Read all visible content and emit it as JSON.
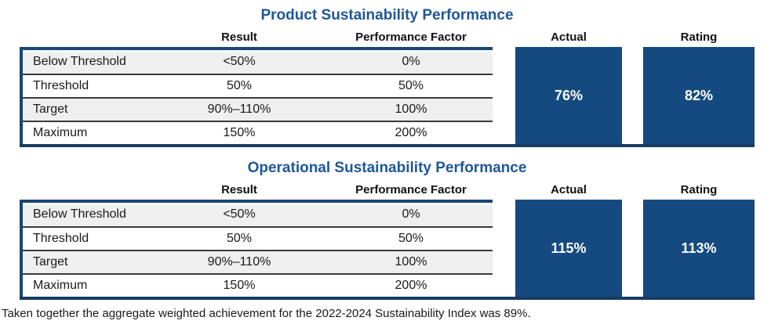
{
  "colors": {
    "title_blue": "#1e5799",
    "box_navy": "#154a80",
    "border_navy": "#173c62",
    "row_alt_gray": "#efefef",
    "row_line_dark": "#3a3a3a",
    "box_value_text": "#ffffff"
  },
  "sections": [
    {
      "title": "Product Sustainability Performance",
      "columns": {
        "result": "Result",
        "performance_factor": "Performance Factor",
        "actual": "Actual",
        "rating": "Rating"
      },
      "rows": [
        {
          "label": "Below Threshold",
          "result": "<50%",
          "performance_factor": "0%"
        },
        {
          "label": "Threshold",
          "result": "50%",
          "performance_factor": "50%"
        },
        {
          "label": "Target",
          "result": "90%–110%",
          "performance_factor": "100%"
        },
        {
          "label": "Maximum",
          "result": "150%",
          "performance_factor": "200%"
        }
      ],
      "actual_value": "76%",
      "rating_value": "82%"
    },
    {
      "title": "Operational Sustainability Performance",
      "columns": {
        "result": "Result",
        "performance_factor": "Performance Factor",
        "actual": "Actual",
        "rating": "Rating"
      },
      "rows": [
        {
          "label": "Below Threshold",
          "result": "<50%",
          "performance_factor": "0%"
        },
        {
          "label": "Threshold",
          "result": "50%",
          "performance_factor": "50%"
        },
        {
          "label": "Target",
          "result": "90%–110%",
          "performance_factor": "100%"
        },
        {
          "label": "Maximum",
          "result": "150%",
          "performance_factor": "200%"
        }
      ],
      "actual_value": "115%",
      "rating_value": "113%"
    }
  ],
  "footer": {
    "note": "Taken together the aggregate weighted achievement for the 2022-2024 Sustainability Index was 89%."
  }
}
